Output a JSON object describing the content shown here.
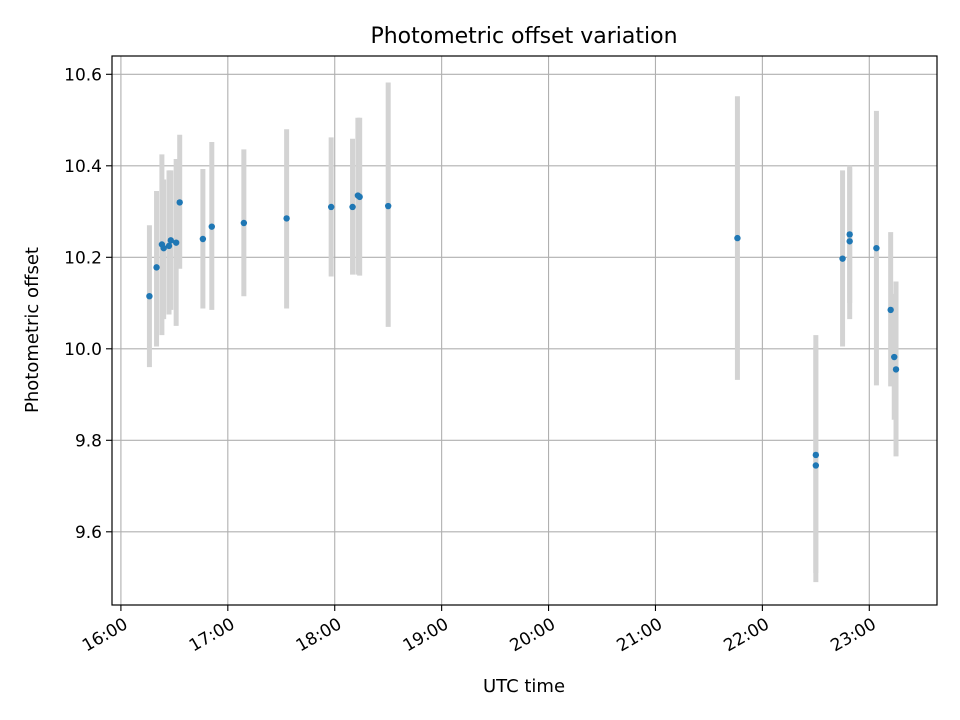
{
  "chart_data": {
    "type": "scatter",
    "title": "Photometric offset variation",
    "xlabel": "UTC time",
    "ylabel": "Photometric offset",
    "x_axis_type": "time",
    "xlim": [
      "15:55",
      "23:38"
    ],
    "ylim": [
      9.44,
      10.64
    ],
    "x_ticks": [
      "16:00",
      "17:00",
      "18:00",
      "19:00",
      "20:00",
      "21:00",
      "22:00",
      "23:00"
    ],
    "y_ticks": [
      9.6,
      9.8,
      10.0,
      10.2,
      10.4,
      10.6
    ],
    "grid": true,
    "colors": {
      "points": "#1f77b4",
      "error_bars": "#d3d3d3",
      "grid": "#b0b0b0"
    },
    "points": [
      {
        "x": "16:16",
        "y": 10.115,
        "ylow": 9.96,
        "yhigh": 10.27
      },
      {
        "x": "16:20",
        "y": 10.178,
        "ylow": 10.005,
        "yhigh": 10.345
      },
      {
        "x": "16:23",
        "y": 10.228,
        "ylow": 10.03,
        "yhigh": 10.425
      },
      {
        "x": "16:24",
        "y": 10.22,
        "ylow": 10.065,
        "yhigh": 10.37
      },
      {
        "x": "16:27",
        "y": 10.225,
        "ylow": 10.075,
        "yhigh": 10.39
      },
      {
        "x": "16:28",
        "y": 10.237,
        "ylow": 10.085,
        "yhigh": 10.39
      },
      {
        "x": "16:31",
        "y": 10.232,
        "ylow": 10.05,
        "yhigh": 10.415
      },
      {
        "x": "16:33",
        "y": 10.32,
        "ylow": 10.175,
        "yhigh": 10.468
      },
      {
        "x": "16:46",
        "y": 10.24,
        "ylow": 10.088,
        "yhigh": 10.393
      },
      {
        "x": "16:51",
        "y": 10.267,
        "ylow": 10.085,
        "yhigh": 10.452
      },
      {
        "x": "17:09",
        "y": 10.275,
        "ylow": 10.115,
        "yhigh": 10.436
      },
      {
        "x": "17:33",
        "y": 10.285,
        "ylow": 10.088,
        "yhigh": 10.48
      },
      {
        "x": "17:58",
        "y": 10.31,
        "ylow": 10.158,
        "yhigh": 10.462
      },
      {
        "x": "18:10",
        "y": 10.31,
        "ylow": 10.162,
        "yhigh": 10.459
      },
      {
        "x": "18:13",
        "y": 10.335,
        "ylow": 10.162,
        "yhigh": 10.505
      },
      {
        "x": "18:14",
        "y": 10.332,
        "ylow": 10.16,
        "yhigh": 10.505
      },
      {
        "x": "18:30",
        "y": 10.312,
        "ylow": 10.048,
        "yhigh": 10.582
      },
      {
        "x": "21:46",
        "y": 10.242,
        "ylow": 9.932,
        "yhigh": 10.552
      },
      {
        "x": "22:30",
        "y": 9.768,
        "ylow": 9.51,
        "yhigh": 10.03
      },
      {
        "x": "22:30",
        "y": 9.745,
        "ylow": 9.49,
        "yhigh": 10.005
      },
      {
        "x": "22:45",
        "y": 10.197,
        "ylow": 10.005,
        "yhigh": 10.39
      },
      {
        "x": "22:49",
        "y": 10.25,
        "ylow": 10.1,
        "yhigh": 10.4
      },
      {
        "x": "22:49",
        "y": 10.235,
        "ylow": 10.065,
        "yhigh": 10.395
      },
      {
        "x": "23:04",
        "y": 10.22,
        "ylow": 9.92,
        "yhigh": 10.52
      },
      {
        "x": "23:12",
        "y": 10.085,
        "ylow": 9.918,
        "yhigh": 10.255
      },
      {
        "x": "23:14",
        "y": 9.982,
        "ylow": 9.845,
        "yhigh": 10.12
      },
      {
        "x": "23:15",
        "y": 9.955,
        "ylow": 9.765,
        "yhigh": 10.147
      }
    ]
  }
}
